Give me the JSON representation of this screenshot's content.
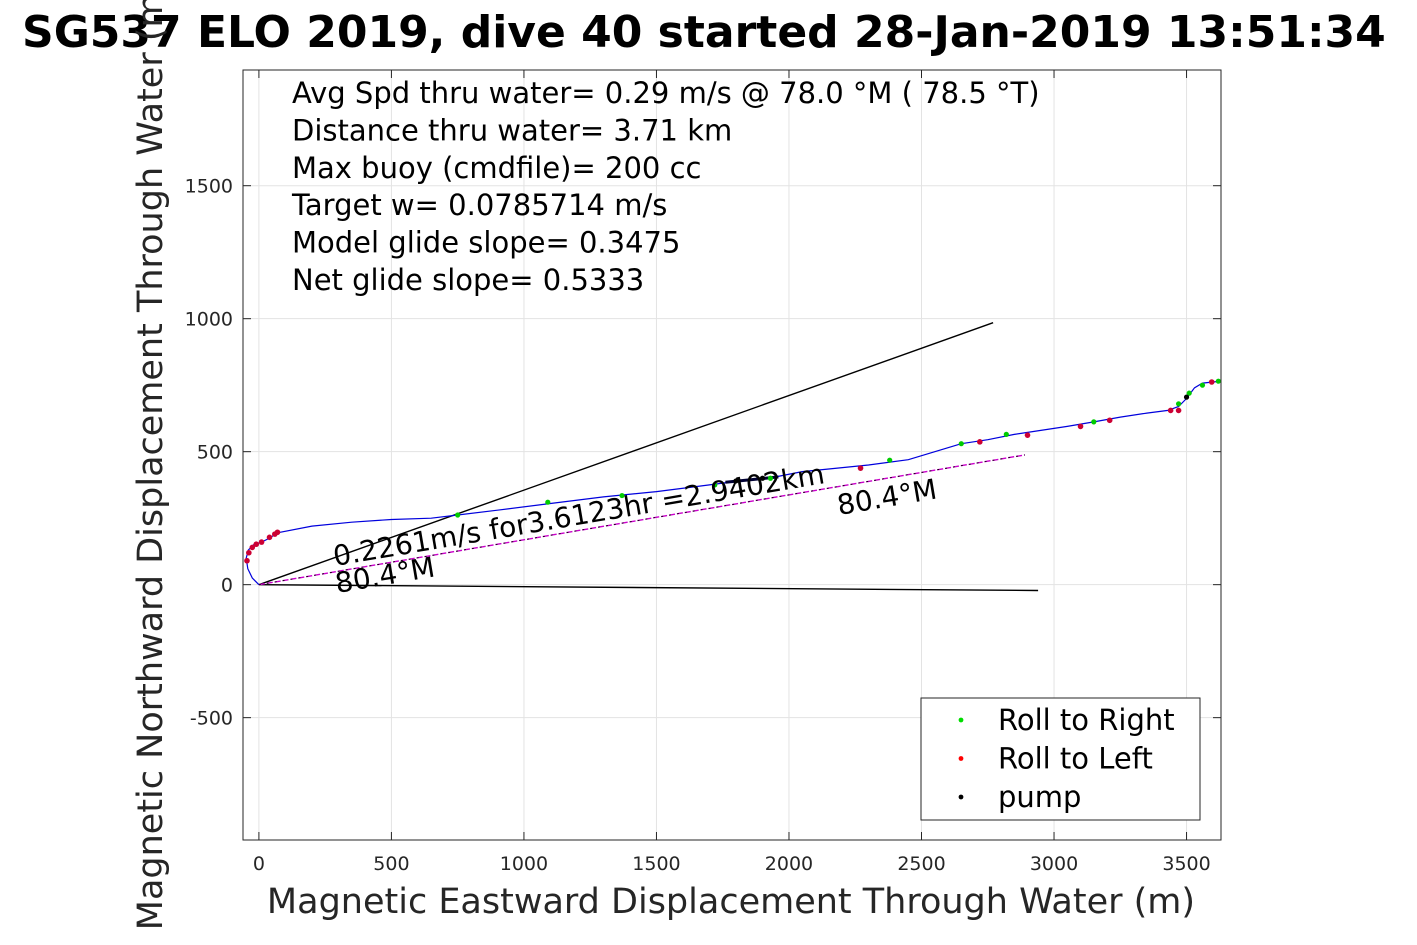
{
  "chart_data": {
    "type": "line",
    "title": "SG537 ELO 2019, dive 40 started 28-Jan-2019 13:51:34",
    "xlabel": "Magnetic Eastward Displacement Through Water (m)",
    "ylabel": "Magnetic Northward Displacement Through Water (m)",
    "xlim": [
      -60,
      3630
    ],
    "ylim": [
      -960,
      1935
    ],
    "x_ticks": [
      "0",
      "500",
      "1000",
      "1500",
      "2000",
      "2500",
      "3000",
      "3500"
    ],
    "y_ticks": [
      "-500",
      "0",
      "500",
      "1000",
      "1500"
    ],
    "grid": true,
    "legend_position": "bottom-right",
    "legend": [
      {
        "label": "Roll to Right",
        "color": "#00dd00"
      },
      {
        "label": "Roll to Left",
        "color": "#ff0000"
      },
      {
        "label": "pump",
        "color": "#000000"
      }
    ],
    "stats": [
      "Avg Spd thru water=  0.29 m/s @  78.0 °M ( 78.5 °T)",
      "Distance thru water=  3.71 km",
      "Max buoy (cmdfile)= 200 cc",
      "Target w= 0.0785714 m/s",
      "Model glide slope= 0.3475",
      "Net glide slope= 0.5333"
    ],
    "annotations": {
      "speed": "0.2261m/s for3.6123hr =2.9402km",
      "heading_start": "80.4°M",
      "heading_end": "80.4°M"
    },
    "track": {
      "color": "#0000dd",
      "x": [
        0,
        -25,
        -42,
        -48,
        -40,
        -20,
        10,
        40,
        70,
        200,
        350,
        500,
        650,
        750,
        900,
        1100,
        1300,
        1500,
        1700,
        1850,
        1950,
        2050,
        2150,
        2300,
        2450,
        2550,
        2650,
        2750,
        2850,
        2950,
        3050,
        3150,
        3250,
        3350,
        3430,
        3470,
        3500,
        3530,
        3560,
        3600,
        3630
      ],
      "y": [
        0,
        25,
        60,
        100,
        130,
        150,
        160,
        175,
        195,
        220,
        235,
        245,
        250,
        262,
        280,
        305,
        330,
        350,
        375,
        395,
        405,
        425,
        435,
        450,
        470,
        500,
        530,
        545,
        565,
        580,
        595,
        612,
        630,
        645,
        655,
        670,
        700,
        740,
        758,
        762,
        765
      ]
    },
    "target_line": {
      "color": "#cc00cc",
      "x": [
        0,
        2890
      ],
      "y": [
        0,
        488
      ]
    },
    "heading_lines": [
      {
        "color": "#000000",
        "x": [
          0,
          2770
        ],
        "y": [
          0,
          985
        ]
      },
      {
        "color": "#000000",
        "x": [
          0,
          2940
        ],
        "y": [
          0,
          -22
        ]
      }
    ],
    "pump_segment": {
      "color": "#000033",
      "x": [
        1760,
        1960
      ],
      "y": [
        385,
        405
      ]
    },
    "markers": {
      "roll_right": {
        "x": [
          750,
          1090,
          1370,
          1720,
          1930,
          2380,
          2650,
          2820,
          3150,
          3470,
          3510,
          3560,
          3620
        ],
        "y": [
          262,
          310,
          335,
          375,
          400,
          468,
          530,
          565,
          612,
          680,
          720,
          750,
          765
        ]
      },
      "roll_left": {
        "x": [
          -45,
          -38,
          -25,
          -10,
          10,
          40,
          60,
          70,
          2270,
          2720,
          2900,
          3100,
          3210,
          3440,
          3470,
          3595
        ],
        "y": [
          90,
          120,
          140,
          152,
          160,
          178,
          190,
          197,
          438,
          537,
          562,
          595,
          618,
          655,
          655,
          762
        ]
      },
      "pump": {
        "x": [
          1800,
          1900,
          3500
        ],
        "y": [
          390,
          400,
          705
        ]
      }
    }
  }
}
